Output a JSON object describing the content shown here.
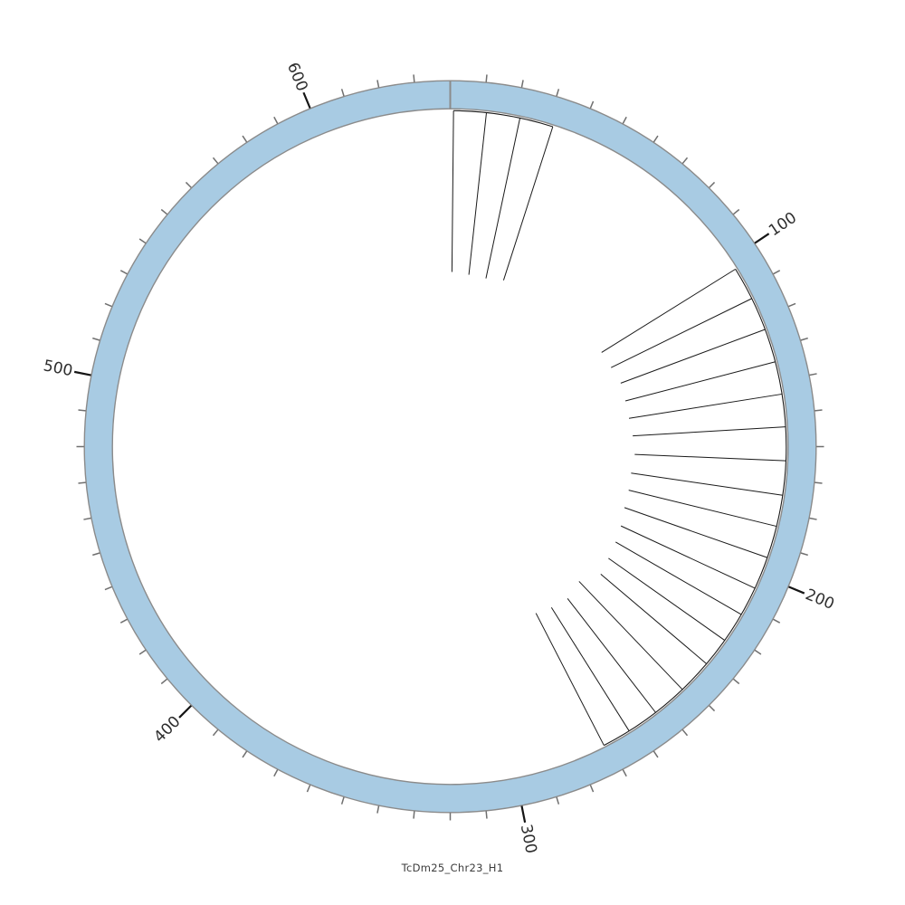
{
  "caption": "TcDm25_Chr23_H1",
  "colors": {
    "background": "#ffffff",
    "ring_fill": "#a8cbe3",
    "ring_stroke": "#8b8b8b",
    "divider": "#8b8b8b",
    "tick_minor": "#6f6f6f",
    "tick_major": "#151515",
    "tick_label": "#2e2e2e",
    "feature_line": "#1a1a1a",
    "caption_text": "#3c3c3c"
  },
  "chart_data": {
    "type": "circular-ideogram",
    "description": "Circos-style single-chromosome plot; one light blue ring with tick scale, two fans of thin radial feature lines with a baseline arc just inside the ring",
    "sequence_name": "TcDm25_Chr23_H1",
    "total_length": 640,
    "orientation": "clockwise",
    "start_angle_deg": 0,
    "axis": {
      "minor_tick_interval": 10,
      "major_tick_interval": 100,
      "last_minor_tick": 630,
      "major_tick_labels": [
        "100",
        "200",
        "300",
        "400",
        "500",
        "600"
      ],
      "major_tick_values": [
        100,
        200,
        300,
        400,
        500,
        600
      ]
    },
    "feature_groups": [
      {
        "id": "fan-top",
        "arc_span_units": [
          1.0,
          31.6
        ],
        "spokes_pos_and_tip_radius_px": [
          [
            1.0,
            193
          ],
          [
            11.0,
            191
          ],
          [
            21.3,
            190
          ],
          [
            31.6,
            193
          ]
        ]
      },
      {
        "id": "fan-right",
        "arc_span_units": [
          103.3,
          271.6
        ],
        "spokes_pos_and_tip_radius_px": [
          [
            103.3,
            197
          ],
          [
            113.5,
            198
          ],
          [
            123.7,
            201
          ],
          [
            134.0,
            200
          ],
          [
            144.0,
            200
          ],
          [
            154.0,
            202
          ],
          [
            164.3,
            204
          ],
          [
            174.8,
            202
          ],
          [
            184.4,
            203
          ],
          [
            194.3,
            204
          ],
          [
            204.3,
            208
          ],
          [
            213.3,
            211
          ],
          [
            222.6,
            214
          ],
          [
            231.6,
            218
          ],
          [
            242.3,
            206
          ],
          [
            253.0,
            212
          ],
          [
            262.8,
            210
          ],
          [
            271.6,
            207
          ]
        ]
      }
    ]
  }
}
